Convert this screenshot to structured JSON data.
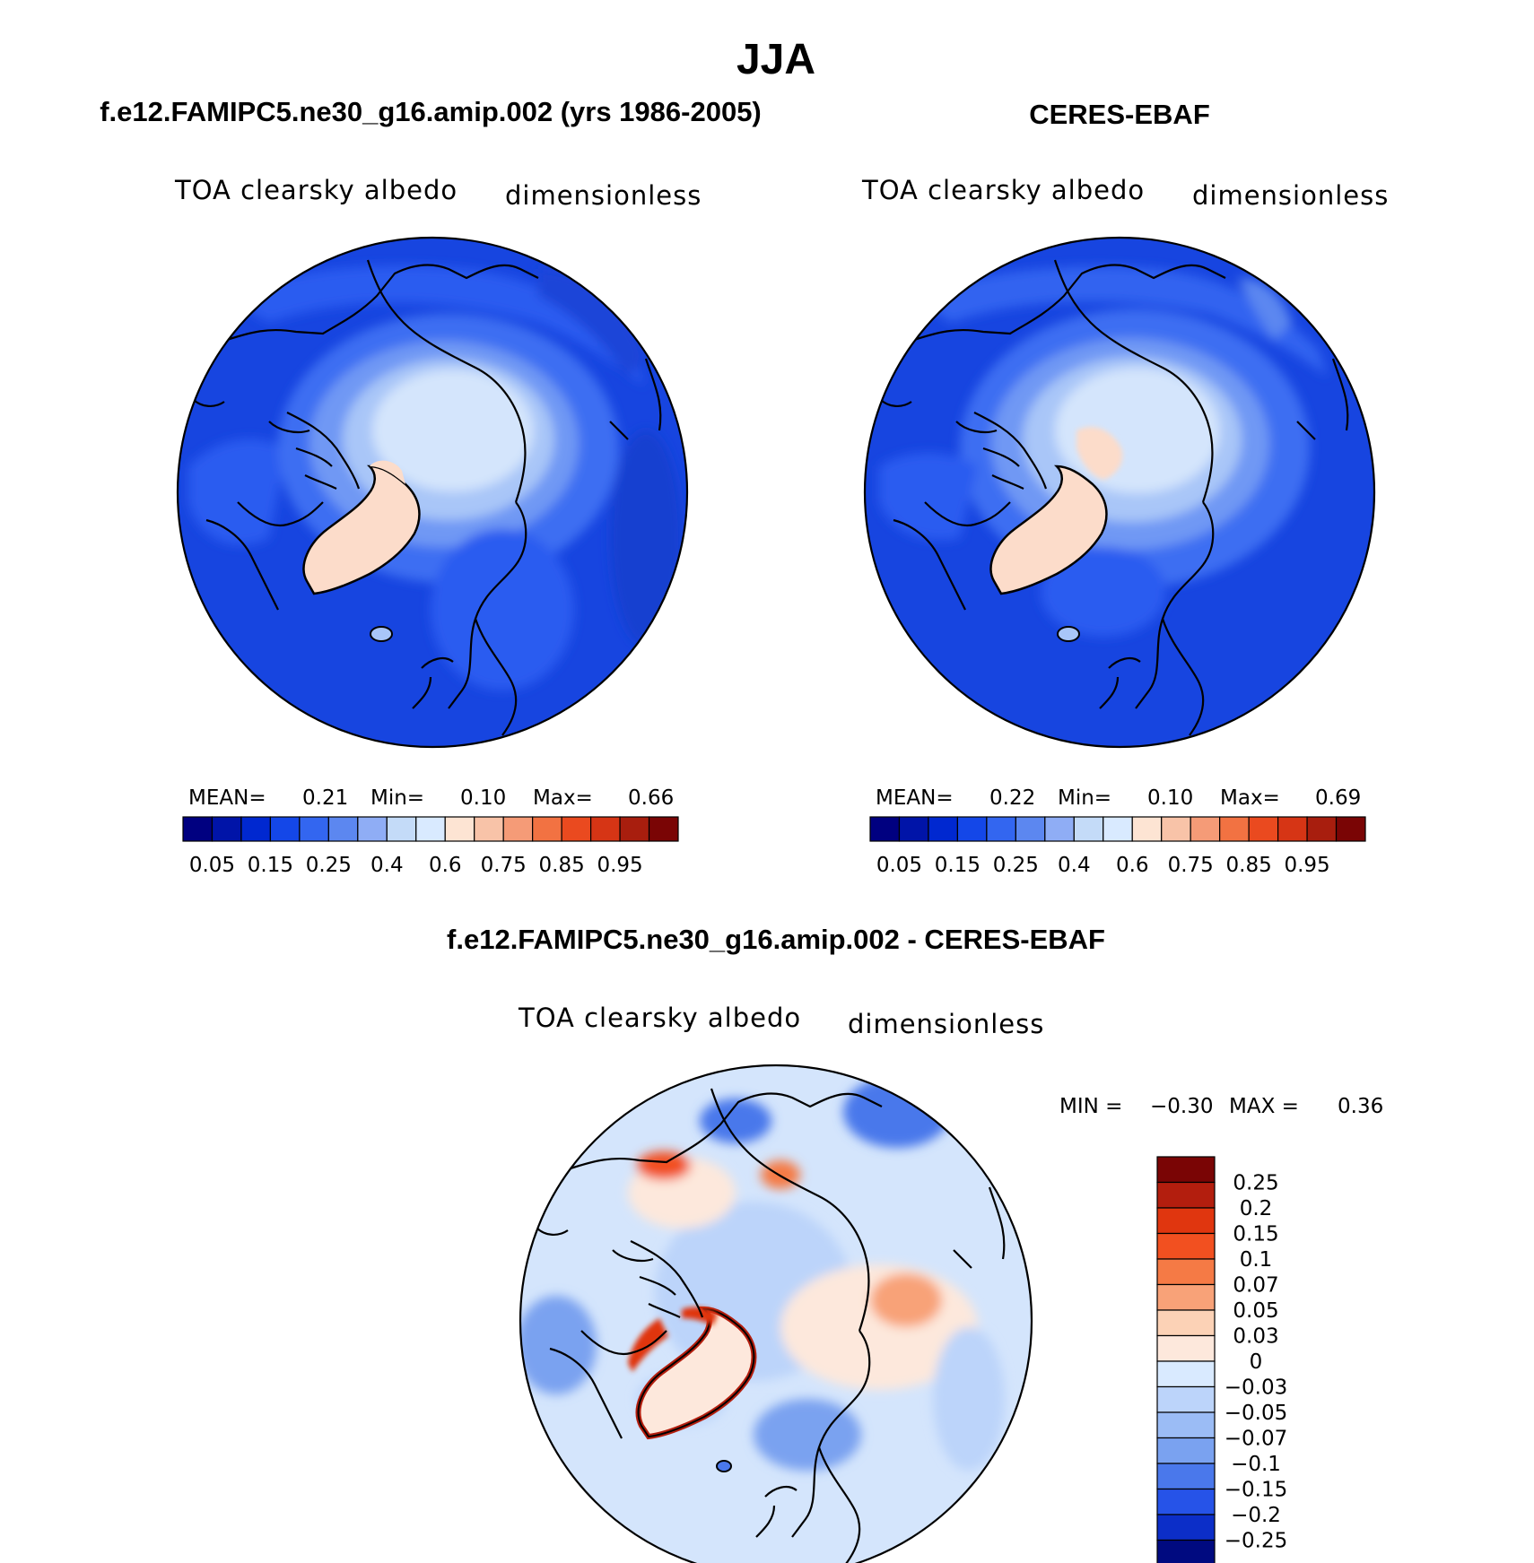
{
  "figure": {
    "title": "JJA",
    "panels": [
      {
        "id": "model",
        "heading": "f.e12.FAMIPC5.ne30_g16.amip.002 (yrs 1986-2005)",
        "variable": "TOA clearsky albedo",
        "units": "dimensionless",
        "stats": {
          "mean_label": "MEAN=",
          "mean": "0.21",
          "min_label": "Min=",
          "min": "0.10",
          "max_label": "Max=",
          "max": "0.66"
        }
      },
      {
        "id": "obs",
        "heading": "CERES-EBAF",
        "variable": "TOA clearsky albedo",
        "units": "dimensionless",
        "stats": {
          "mean_label": "MEAN=",
          "mean": "0.22",
          "min_label": "Min=",
          "min": "0.10",
          "max_label": "Max=",
          "max": "0.69"
        }
      },
      {
        "id": "diff",
        "heading": "f.e12.FAMIPC5.ne30_g16.amip.002 - CERES-EBAF",
        "variable": "TOA clearsky albedo",
        "units": "dimensionless",
        "stats": {
          "min_label": "MIN =",
          "min": "−0.30",
          "max_label": "MAX =",
          "max": "0.36"
        }
      }
    ],
    "abs_colorbar": {
      "colors": [
        "#000080",
        "#0014a8",
        "#0028d0",
        "#1447e8",
        "#3366f0",
        "#5c87f0",
        "#8fadf5",
        "#c4dbf8",
        "#d9eaff",
        "#fde4d3",
        "#f8c3a8",
        "#f59b77",
        "#f27242",
        "#ea4a1f",
        "#d63515",
        "#a81e0e",
        "#7a0505"
      ],
      "tick_labels": [
        "0.05",
        "0.15",
        "0.25",
        "0.4",
        "0.6",
        "0.75",
        "0.85",
        "0.95"
      ]
    },
    "diff_colorbar": {
      "colors": [
        "#7a0505",
        "#b31e0e",
        "#e0360f",
        "#f25020",
        "#f57a45",
        "#f8a278",
        "#fcd2b6",
        "#fde8dc",
        "#d9eaff",
        "#bcd4fa",
        "#9bbcf5",
        "#7aa2f0",
        "#4a78eb",
        "#2653e8",
        "#0c2ec8",
        "#000a80"
      ],
      "tick_labels": [
        "0.25",
        "0.2",
        "0.15",
        "0.1",
        "0.07",
        "0.05",
        "0.03",
        "0",
        "−0.03",
        "−0.05",
        "−0.07",
        "−0.1",
        "−0.15",
        "−0.2",
        "−0.25"
      ]
    }
  }
}
